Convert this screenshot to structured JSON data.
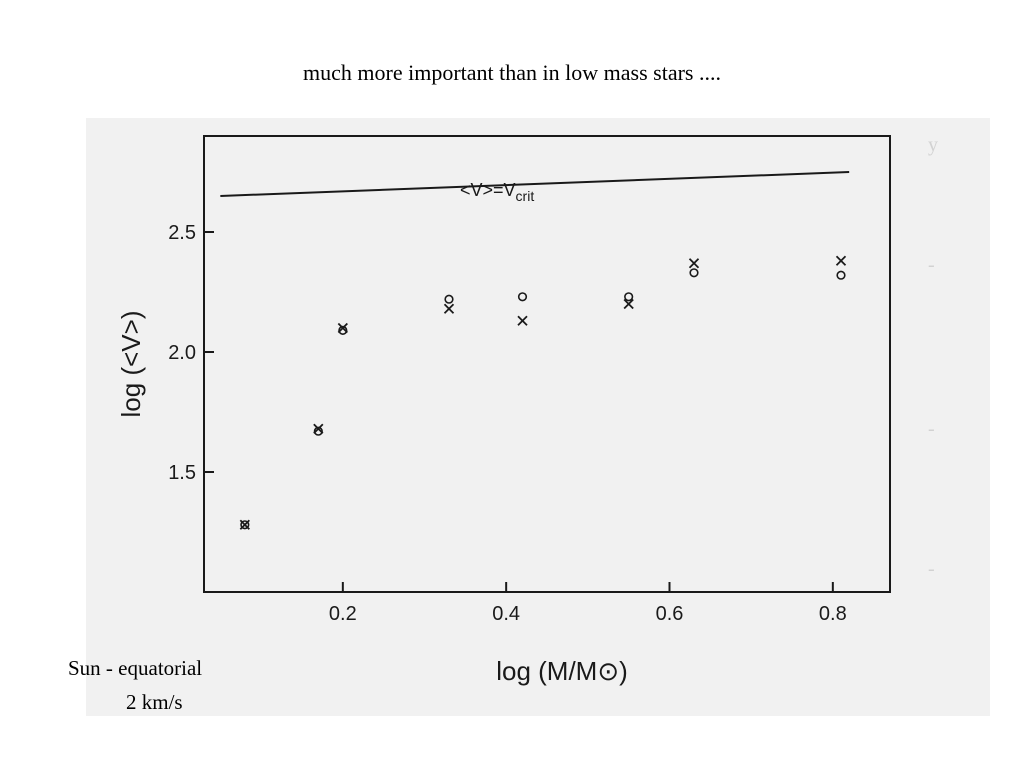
{
  "slide": {
    "title": "much more important than in low mass stars ....",
    "caption_line1": "Sun - equatorial",
    "caption_line2": "2 km/s"
  },
  "colors": {
    "ink": "#1a1a1a",
    "scan_bg": "#f1f1f1",
    "ghost_text": "#d2d2d2"
  },
  "chart_data": {
    "type": "scatter",
    "xlabel": "log (M/M⊙)",
    "ylabel": "log (<V>)",
    "xlim": [
      0.03,
      0.87
    ],
    "ylim": [
      1.0,
      2.9
    ],
    "xticks": [
      0.2,
      0.4,
      0.6,
      0.8
    ],
    "xtick_labels": [
      "0.2",
      "0.4",
      "0.6",
      "0.8"
    ],
    "yticks": [
      1.5,
      2.0,
      2.5
    ],
    "ytick_labels": [
      "1.5",
      "2.0",
      "2.5"
    ],
    "grid": false,
    "critical_line": {
      "label": "<V>=V",
      "label_sub": "crit",
      "x": [
        0.05,
        0.82
      ],
      "y": [
        2.65,
        2.75
      ]
    },
    "series": [
      {
        "marker": "x",
        "x": [
          0.08,
          0.17,
          0.2,
          0.33,
          0.42,
          0.55,
          0.63,
          0.81
        ],
        "y": [
          1.28,
          1.68,
          2.1,
          2.18,
          2.13,
          2.2,
          2.37,
          2.38
        ]
      },
      {
        "marker": "o",
        "x": [
          0.08,
          0.17,
          0.2,
          0.33,
          0.42,
          0.55,
          0.63,
          0.81
        ],
        "y": [
          1.28,
          1.67,
          2.09,
          2.22,
          2.23,
          2.23,
          2.33,
          2.32
        ]
      }
    ]
  }
}
